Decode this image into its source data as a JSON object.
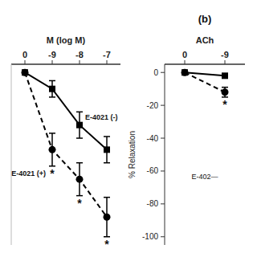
{
  "chart_data": [
    {
      "type": "line",
      "xlabel": "M (log M)",
      "categories": [
        "0",
        "-9",
        "-8",
        "-7"
      ],
      "ylim": [
        -105,
        5
      ],
      "tick_labels": "x",
      "series": [
        {
          "name": "E-4021 (-)",
          "color": "#000000",
          "marker": "square",
          "line_style": "solid",
          "values": [
            0,
            -10,
            -32,
            -47
          ],
          "errors": [
            0,
            5,
            8,
            8
          ]
        },
        {
          "name": "E-4021 (+)",
          "color": "#000000",
          "marker": "circle",
          "line_style": "dashed",
          "values": [
            0,
            -47,
            -65,
            -88
          ],
          "errors": [
            0,
            10,
            10,
            12
          ],
          "annotations": [
            {
              "text": "*",
              "category": "-9"
            },
            {
              "text": "*",
              "category": "-8"
            },
            {
              "text": "*",
              "category": "-7"
            }
          ]
        }
      ]
    },
    {
      "type": "line",
      "title": "(b)",
      "subtitle": "ACh",
      "ylabel": "% Relaxation",
      "categories": [
        "0",
        "-9"
      ],
      "ylim": [
        -105,
        5
      ],
      "yticks": [
        0,
        -20,
        -40,
        -60,
        -80,
        -100
      ],
      "series": [
        {
          "color": "#000000",
          "marker": "square",
          "line_style": "solid",
          "values": [
            0,
            -2
          ],
          "errors": [
            0,
            1
          ]
        },
        {
          "color": "#000000",
          "marker": "circle",
          "line_style": "dashed",
          "values": [
            0,
            -12
          ],
          "errors": [
            0,
            3
          ],
          "annotations": [
            {
              "text": "*",
              "category": "-9"
            }
          ]
        }
      ],
      "annotations": [
        {
          "text": "E-402—"
        }
      ]
    }
  ]
}
